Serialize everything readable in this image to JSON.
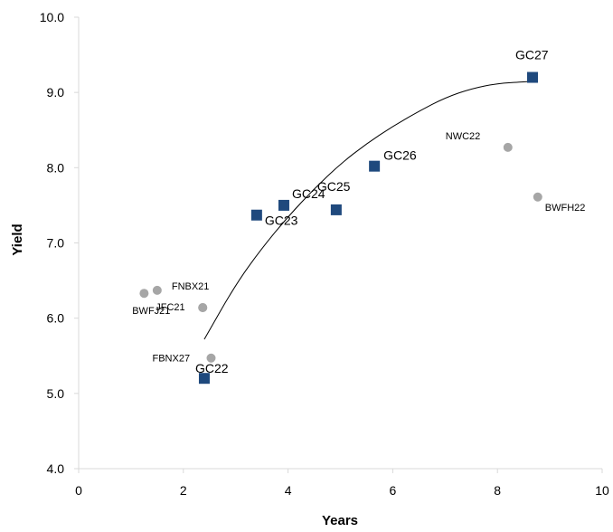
{
  "chart_data": {
    "type": "scatter",
    "title": "",
    "xlabel": "Years",
    "ylabel": "Yield",
    "xlim": [
      0,
      10
    ],
    "ylim": [
      4.0,
      10.0
    ],
    "x_ticks": [
      "0",
      "2",
      "4",
      "6",
      "8",
      "10"
    ],
    "y_ticks": [
      "4.0",
      "5.0",
      "6.0",
      "7.0",
      "8.0",
      "9.0",
      "10.0"
    ],
    "grid": false,
    "legend": "none",
    "series": [
      {
        "marker": "square",
        "color": "#1f497d",
        "points": [
          {
            "label": "GC22",
            "x": 2.4,
            "y": 5.2
          },
          {
            "label": "GC23",
            "x": 3.4,
            "y": 7.37
          },
          {
            "label": "GC24",
            "x": 3.92,
            "y": 7.5
          },
          {
            "label": "GC25",
            "x": 4.92,
            "y": 7.44
          },
          {
            "label": "GC26",
            "x": 5.65,
            "y": 8.02
          },
          {
            "label": "GC27",
            "x": 8.67,
            "y": 9.2
          }
        ]
      },
      {
        "marker": "circle",
        "color": "#a6a6a6",
        "points": [
          {
            "label": "",
            "x": 1.25,
            "y": 6.33
          },
          {
            "label": "FNBX21",
            "x": 1.5,
            "y": 6.37
          },
          {
            "label": "JFC21",
            "x": 2.37,
            "y": 6.14
          },
          {
            "label": "BWFJ21",
            "x": 2.37,
            "y": 6.14
          },
          {
            "label": "FBNX27",
            "x": 2.53,
            "y": 5.47
          },
          {
            "label": "NWC22",
            "x": 8.2,
            "y": 8.27
          },
          {
            "label": "BWFH22",
            "x": 8.77,
            "y": 7.61
          }
        ]
      }
    ],
    "trendline": {
      "type": "polynomial",
      "color": "#000000",
      "points": [
        {
          "x": 2.4,
          "y": 5.72
        },
        {
          "x": 3.0,
          "y": 6.45
        },
        {
          "x": 3.5,
          "y": 6.93
        },
        {
          "x": 4.0,
          "y": 7.35
        },
        {
          "x": 4.5,
          "y": 7.72
        },
        {
          "x": 5.0,
          "y": 8.05
        },
        {
          "x": 5.5,
          "y": 8.32
        },
        {
          "x": 6.0,
          "y": 8.55
        },
        {
          "x": 6.5,
          "y": 8.75
        },
        {
          "x": 7.0,
          "y": 8.93
        },
        {
          "x": 7.5,
          "y": 9.05
        },
        {
          "x": 8.0,
          "y": 9.12
        },
        {
          "x": 8.5,
          "y": 9.14
        },
        {
          "x": 8.67,
          "y": 9.15
        }
      ]
    }
  }
}
